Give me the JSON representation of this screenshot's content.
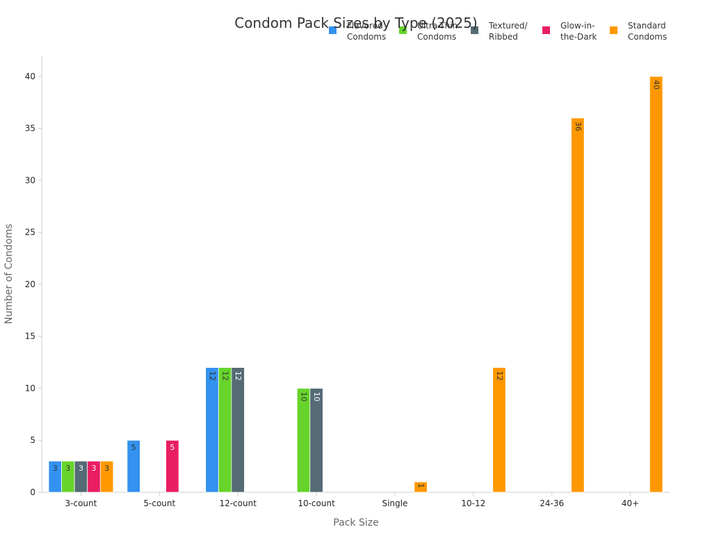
{
  "chart_data": {
    "type": "bar",
    "title": "Condom Pack Sizes by Type (2025)",
    "xlabel": "Pack Size",
    "ylabel": "Number of Condoms",
    "ylim": [
      0,
      42
    ],
    "yticks": [
      0,
      5,
      10,
      15,
      20,
      25,
      30,
      35,
      40
    ],
    "categories": [
      "3-count",
      "5-count",
      "12-count",
      "10-count",
      "Single",
      "10-12",
      "24-36",
      "40+"
    ],
    "legend_position": "top-right",
    "grid": false,
    "series": [
      {
        "name": "Flavored Condoms",
        "legend_lines": [
          "Flavored",
          "Condoms"
        ],
        "color": "#3391EF",
        "label_color": "#333333",
        "values": [
          3,
          5,
          12,
          null,
          null,
          null,
          null,
          null
        ]
      },
      {
        "name": "Ultra-Thin Condoms",
        "legend_lines": [
          "Ultra-Thin",
          "Condoms"
        ],
        "color": "#66D42B",
        "label_color": "#333333",
        "values": [
          3,
          null,
          12,
          10,
          null,
          null,
          null,
          null
        ]
      },
      {
        "name": "Textured/ Ribbed",
        "legend_lines": [
          "Textured/",
          "Ribbed"
        ],
        "color": "#546A74",
        "label_color": "#ffffff",
        "values": [
          3,
          null,
          12,
          10,
          null,
          null,
          null,
          null
        ]
      },
      {
        "name": "Glow-in-the-Dark",
        "legend_lines": [
          "Glow-in-",
          "the-Dark"
        ],
        "color": "#E91E63",
        "label_color": "#ffffff",
        "values": [
          3,
          5,
          null,
          null,
          null,
          null,
          null,
          null
        ]
      },
      {
        "name": "Standard Condoms",
        "legend_lines": [
          "Standard",
          "Condoms"
        ],
        "color": "#FF9800",
        "label_color": "#333333",
        "values": [
          3,
          null,
          null,
          null,
          1,
          12,
          36,
          40
        ]
      }
    ]
  }
}
